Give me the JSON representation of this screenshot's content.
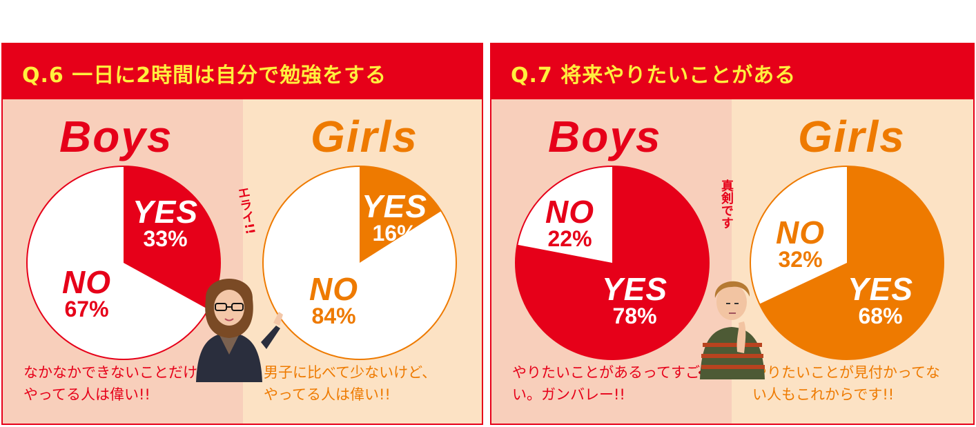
{
  "colors": {
    "header_red": "#e60019",
    "title_yellow": "#ffef3e",
    "boys_red": "#e60019",
    "girls_orange": "#ee7a00",
    "boys_bg": "#f8cfbb",
    "girls_bg": "#fce2c4"
  },
  "panels": [
    {
      "title": "Q.6 一日に2時間は自分で勉強をする",
      "boys": {
        "title": "Boys",
        "yes_label": "YES",
        "yes_pct": "33%",
        "no_label": "NO",
        "no_pct": "67%",
        "comment_line1": "なかなかできないことだけど、",
        "comment_line2": "やってる人は偉い!!"
      },
      "girls": {
        "title": "Girls",
        "yes_label": "YES",
        "yes_pct": "16%",
        "no_label": "NO",
        "no_pct": "84%",
        "comment_line1": "男子に比べて少ないけど、",
        "comment_line2": "やってる人は偉い!!"
      },
      "remark": "エライ!!"
    },
    {
      "title": "Q.7 将来やりたいことがある",
      "boys": {
        "title": "Boys",
        "yes_label": "YES",
        "yes_pct": "78%",
        "no_label": "NO",
        "no_pct": "22%",
        "comment_line1": "やりたいことがあるってすご",
        "comment_line2": "い。ガンバレー!!"
      },
      "girls": {
        "title": "Girls",
        "yes_label": "YES",
        "yes_pct": "68%",
        "no_label": "NO",
        "no_pct": "32%",
        "comment_line1": "やりたいことが見付かってな",
        "comment_line2": "い人もこれからです!!"
      },
      "remark": "真剣です"
    }
  ],
  "chart_data": [
    {
      "type": "pie",
      "title": "Q.6 一日に2時間は自分で勉強をする",
      "subtitle": "Boys",
      "categories": [
        "YES",
        "NO"
      ],
      "values": [
        33,
        67
      ]
    },
    {
      "type": "pie",
      "title": "Q.6 一日に2時間は自分で勉強をする",
      "subtitle": "Girls",
      "categories": [
        "YES",
        "NO"
      ],
      "values": [
        16,
        84
      ]
    },
    {
      "type": "pie",
      "title": "Q.7 将来やりたいことがある",
      "subtitle": "Boys",
      "categories": [
        "YES",
        "NO"
      ],
      "values": [
        78,
        22
      ]
    },
    {
      "type": "pie",
      "title": "Q.7 将来やりたいことがある",
      "subtitle": "Girls",
      "categories": [
        "YES",
        "NO"
      ],
      "values": [
        68,
        32
      ]
    }
  ]
}
